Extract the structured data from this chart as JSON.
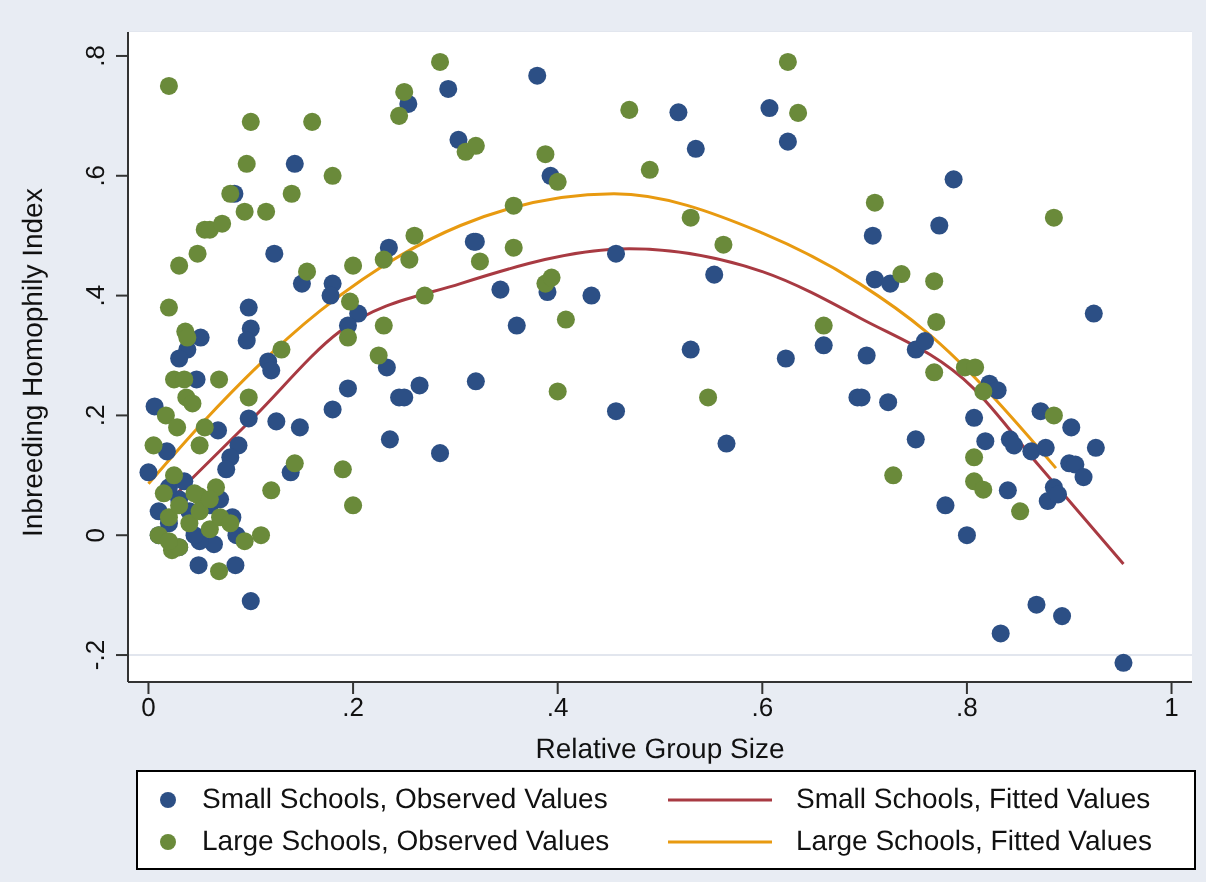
{
  "chart_data": {
    "type": "scatter",
    "xlabel": "Relative Group Size",
    "ylabel": "Inbreeding Homophily Index",
    "xlim": [
      -0.02,
      1.02
    ],
    "ylim": [
      -0.245,
      0.84
    ],
    "xticks": [
      0,
      {
        "value": 0.2,
        "label": ".2"
      },
      {
        "value": 0.4,
        "label": ".4"
      },
      {
        "value": 0.6,
        "label": ".6"
      },
      {
        "value": 0.8,
        "label": ".8"
      },
      1
    ],
    "yticks": [
      {
        "value": -0.2,
        "label": "-.2"
      },
      0,
      {
        "value": 0.2,
        "label": ".2"
      },
      {
        "value": 0.4,
        "label": ".4"
      },
      {
        "value": 0.6,
        "label": ".6"
      },
      {
        "value": 0.8,
        "label": ".8"
      }
    ],
    "grid": "y",
    "legend": "bottom",
    "series": [
      {
        "name": "Small Schools, Observed Values",
        "marker": "circle",
        "color": "#2c4f85",
        "x": [
          0.143,
          0.084,
          0.123,
          0.15,
          0.18,
          0.178,
          0.205,
          0.195,
          0.098,
          0.1,
          0.096,
          0.051,
          0.038,
          0.03,
          0.047,
          0.117,
          0.12,
          0.233,
          0.195,
          0.18,
          0.125,
          0.148,
          0.098,
          0.068,
          0.236,
          0.245,
          0.25,
          0.265,
          0.285,
          0.32,
          0.235,
          0.254,
          0.293,
          0.303,
          0.006,
          0.088,
          0.08,
          0.076,
          0.139,
          0.0,
          0.082,
          0.086,
          0.085,
          0.049,
          0.1,
          0.064,
          0.018,
          0.01,
          0.02,
          0.03,
          0.04,
          0.05,
          0.06,
          0.02,
          0.035,
          0.045,
          0.07,
          0.01,
          0.03,
          0.38,
          0.518,
          0.535,
          0.607,
          0.625,
          0.393,
          0.318,
          0.457,
          0.344,
          0.39,
          0.433,
          0.36,
          0.32,
          0.457,
          0.53,
          0.553,
          0.565,
          0.623,
          0.66,
          0.693,
          0.787,
          0.708,
          0.773,
          0.71,
          0.725,
          0.924,
          0.702,
          0.75,
          0.759,
          0.697,
          0.723,
          0.822,
          0.83,
          0.807,
          0.75,
          0.818,
          0.842,
          0.846,
          0.863,
          0.872,
          0.877,
          0.902,
          0.926,
          0.9,
          0.906,
          0.914,
          0.885,
          0.879,
          0.889,
          0.84,
          0.779,
          0.8,
          0.868,
          0.893,
          0.833,
          0.953
        ],
        "values": [
          0.62,
          0.57,
          0.47,
          0.42,
          0.42,
          0.4,
          0.37,
          0.35,
          0.38,
          0.345,
          0.325,
          0.33,
          0.31,
          0.295,
          0.26,
          0.29,
          0.275,
          0.28,
          0.245,
          0.21,
          0.19,
          0.18,
          0.195,
          0.175,
          0.16,
          0.23,
          0.23,
          0.25,
          0.137,
          0.49,
          0.48,
          0.72,
          0.745,
          0.66,
          0.215,
          0.15,
          0.13,
          0.11,
          0.105,
          0.105,
          0.03,
          0.0,
          -0.05,
          -0.05,
          -0.11,
          -0.015,
          0.14,
          0.0,
          0.02,
          0.06,
          0.04,
          -0.01,
          0.05,
          0.08,
          0.09,
          0.0,
          0.06,
          0.04,
          -0.02,
          0.767,
          0.706,
          0.645,
          0.713,
          0.657,
          0.6,
          0.49,
          0.47,
          0.41,
          0.406,
          0.4,
          0.35,
          0.257,
          0.207,
          0.31,
          0.435,
          0.153,
          0.295,
          0.317,
          0.23,
          0.594,
          0.5,
          0.517,
          0.427,
          0.42,
          0.37,
          0.3,
          0.31,
          0.324,
          0.23,
          0.222,
          0.253,
          0.242,
          0.196,
          0.16,
          0.157,
          0.16,
          0.15,
          0.14,
          0.207,
          0.146,
          0.18,
          0.146,
          0.12,
          0.118,
          0.097,
          0.08,
          0.057,
          0.068,
          0.075,
          0.05,
          0.0,
          -0.116,
          -0.135,
          -0.164,
          -0.213
        ]
      },
      {
        "name": "Small Schools, Fitted Values",
        "type": "line",
        "marker": "none",
        "color": "#a83a42",
        "x": [
          0.025,
          0.103,
          0.187,
          0.305,
          0.47,
          0.6,
          0.695,
          0.806,
          0.871,
          0.953
        ],
        "values": [
          0.065,
          0.197,
          0.34,
          0.42,
          0.478,
          0.44,
          0.363,
          0.246,
          0.115,
          -0.048
        ]
      },
      {
        "name": "Large Schools, Observed Values",
        "marker": "circle",
        "color": "#6a8a3a",
        "x": [
          0.02,
          0.1,
          0.16,
          0.096,
          0.08,
          0.094,
          0.115,
          0.14,
          0.18,
          0.055,
          0.06,
          0.072,
          0.048,
          0.03,
          0.02,
          0.036,
          0.038,
          0.025,
          0.035,
          0.037,
          0.043,
          0.069,
          0.098,
          0.13,
          0.155,
          0.2,
          0.197,
          0.195,
          0.23,
          0.225,
          0.27,
          0.245,
          0.25,
          0.285,
          0.23,
          0.255,
          0.26,
          0.31,
          0.32,
          0.143,
          0.12,
          0.19,
          0.2,
          0.094,
          0.11,
          0.069,
          0.066,
          0.05,
          0.005,
          0.017,
          0.055,
          0.05,
          0.028,
          0.023,
          0.01,
          0.02,
          0.03,
          0.04,
          0.05,
          0.06,
          0.07,
          0.08,
          0.03,
          0.015,
          0.025,
          0.045,
          0.02,
          0.06,
          0.388,
          0.4,
          0.47,
          0.49,
          0.625,
          0.635,
          0.357,
          0.357,
          0.324,
          0.388,
          0.394,
          0.408,
          0.4,
          0.53,
          0.562,
          0.547,
          0.66,
          0.71,
          0.736,
          0.768,
          0.77,
          0.768,
          0.798,
          0.808,
          0.816,
          0.885,
          0.885,
          0.728,
          0.807,
          0.807,
          0.816,
          0.852
        ],
        "values": [
          0.75,
          0.69,
          0.69,
          0.62,
          0.57,
          0.54,
          0.54,
          0.57,
          0.6,
          0.51,
          0.51,
          0.52,
          0.47,
          0.45,
          0.38,
          0.34,
          0.33,
          0.26,
          0.26,
          0.23,
          0.22,
          0.26,
          0.23,
          0.31,
          0.44,
          0.45,
          0.39,
          0.33,
          0.35,
          0.3,
          0.4,
          0.7,
          0.74,
          0.79,
          0.46,
          0.46,
          0.5,
          0.64,
          0.65,
          0.12,
          0.075,
          0.11,
          0.05,
          -0.01,
          0.0,
          -0.06,
          0.08,
          0.065,
          0.15,
          0.2,
          0.18,
          0.15,
          0.18,
          -0.025,
          0.0,
          0.03,
          0.05,
          0.02,
          0.04,
          0.01,
          0.03,
          0.02,
          -0.02,
          0.07,
          0.1,
          0.07,
          -0.01,
          0.06,
          0.636,
          0.59,
          0.71,
          0.61,
          0.79,
          0.705,
          0.55,
          0.48,
          0.457,
          0.42,
          0.43,
          0.36,
          0.24,
          0.53,
          0.485,
          0.23,
          0.35,
          0.555,
          0.436,
          0.424,
          0.356,
          0.272,
          0.28,
          0.28,
          0.24,
          0.53,
          0.2,
          0.1,
          0.13,
          0.09,
          0.076,
          0.04
        ]
      },
      {
        "name": "Large Schools, Fitted Values",
        "type": "line",
        "marker": "none",
        "color": "#e89a10",
        "x": [
          0.0,
          0.054,
          0.168,
          0.305,
          0.455,
          0.598,
          0.695,
          0.76,
          0.887
        ],
        "values": [
          0.086,
          0.19,
          0.375,
          0.517,
          0.57,
          0.506,
          0.42,
          0.34,
          0.112
        ]
      }
    ]
  }
}
